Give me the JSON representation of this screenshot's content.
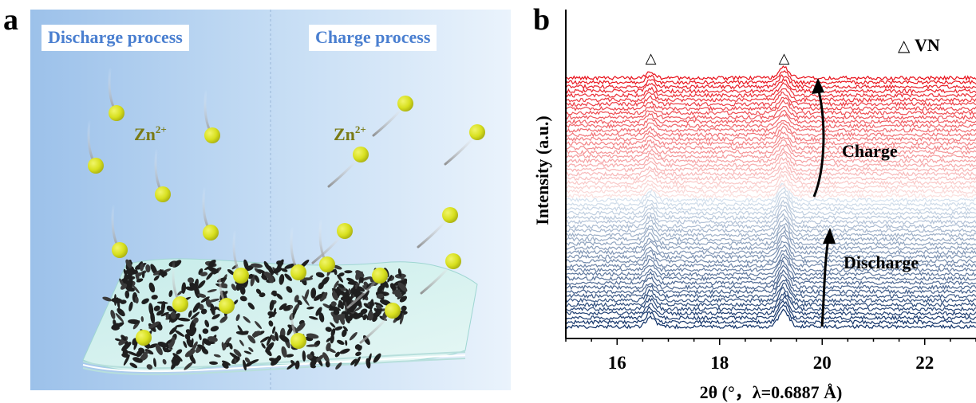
{
  "panel_a": {
    "letter": "a",
    "discharge_label": "Discharge process",
    "charge_label": "Charge process",
    "ion_label_left": "Zn",
    "ion_label_right": "Zn",
    "ion_charge": "2+",
    "colors": {
      "background_left": "#9cc1ea",
      "background_right": "#eaf3fc",
      "ion": "#d8e01f",
      "label_text": "#4a7fd0",
      "flake": "#1f1f1f",
      "sheet": "#c6ece9"
    }
  },
  "panel_b": {
    "letter": "b",
    "legend": {
      "marker": "△",
      "label": "VN"
    },
    "peak_marker": "△",
    "charge_label": "Charge",
    "discharge_label": "Discharge",
    "chart_data": {
      "type": "line",
      "xlabel": "2θ (°，λ=0.6887 Å)",
      "ylabel": "Intensity (a.u.)",
      "xlim": [
        15.0,
        23.0
      ],
      "x_ticks": [
        "16",
        "18",
        "20",
        "22"
      ],
      "peaks_2theta": [
        16.65,
        19.25
      ],
      "series_groups": [
        {
          "name": "Discharge",
          "count": 30,
          "color_start": "#0d2f66",
          "color_end": "#d5e1ee"
        },
        {
          "name": "Charge",
          "count": 28,
          "color_start": "#fbe0de",
          "color_end": "#e8101a"
        }
      ],
      "legend_position": "top-right",
      "grid": false
    }
  }
}
